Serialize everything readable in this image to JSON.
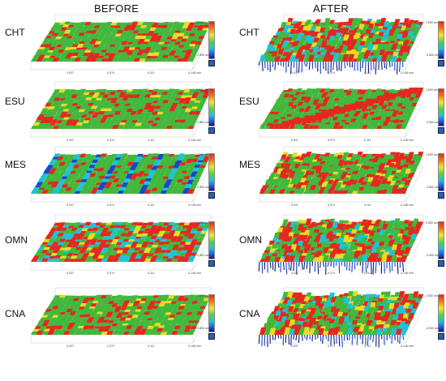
{
  "headers": {
    "before": "BEFORE",
    "after": "AFTER"
  },
  "rows": [
    "CHT",
    "ESU",
    "MES",
    "OMN",
    "CNA"
  ],
  "axis_ticks": [
    "0.037",
    "0.074",
    "0.111",
    "0.148 mm"
  ],
  "colorbar": {
    "top": "2.500 um",
    "bottom": "-2.500 um"
  },
  "colors": {
    "red": "#e3281f",
    "green": "#42b83c",
    "cyan": "#1fc3d6",
    "blue": "#1a46c9",
    "darkblue": "#0d1a7a",
    "yellow": "#eadb22",
    "orange": "#f07a16"
  },
  "panels": [
    {
      "row": "CHT",
      "side": "before",
      "profile": "flat-green-red"
    },
    {
      "row": "CHT",
      "side": "after",
      "profile": "spiky-blue-dips"
    },
    {
      "row": "ESU",
      "side": "before",
      "profile": "flat-green-red"
    },
    {
      "row": "ESU",
      "side": "after",
      "profile": "diagonal-red-ridge"
    },
    {
      "row": "MES",
      "side": "before",
      "profile": "blue-striped"
    },
    {
      "row": "MES",
      "side": "after",
      "profile": "rough-green-red"
    },
    {
      "row": "OMN",
      "side": "before",
      "profile": "red-mottled"
    },
    {
      "row": "OMN",
      "side": "after",
      "profile": "spiky-blue-dips"
    },
    {
      "row": "CNA",
      "side": "before",
      "profile": "flat-green-red"
    },
    {
      "row": "CNA",
      "side": "after",
      "profile": "spiky-blue-dips"
    }
  ]
}
